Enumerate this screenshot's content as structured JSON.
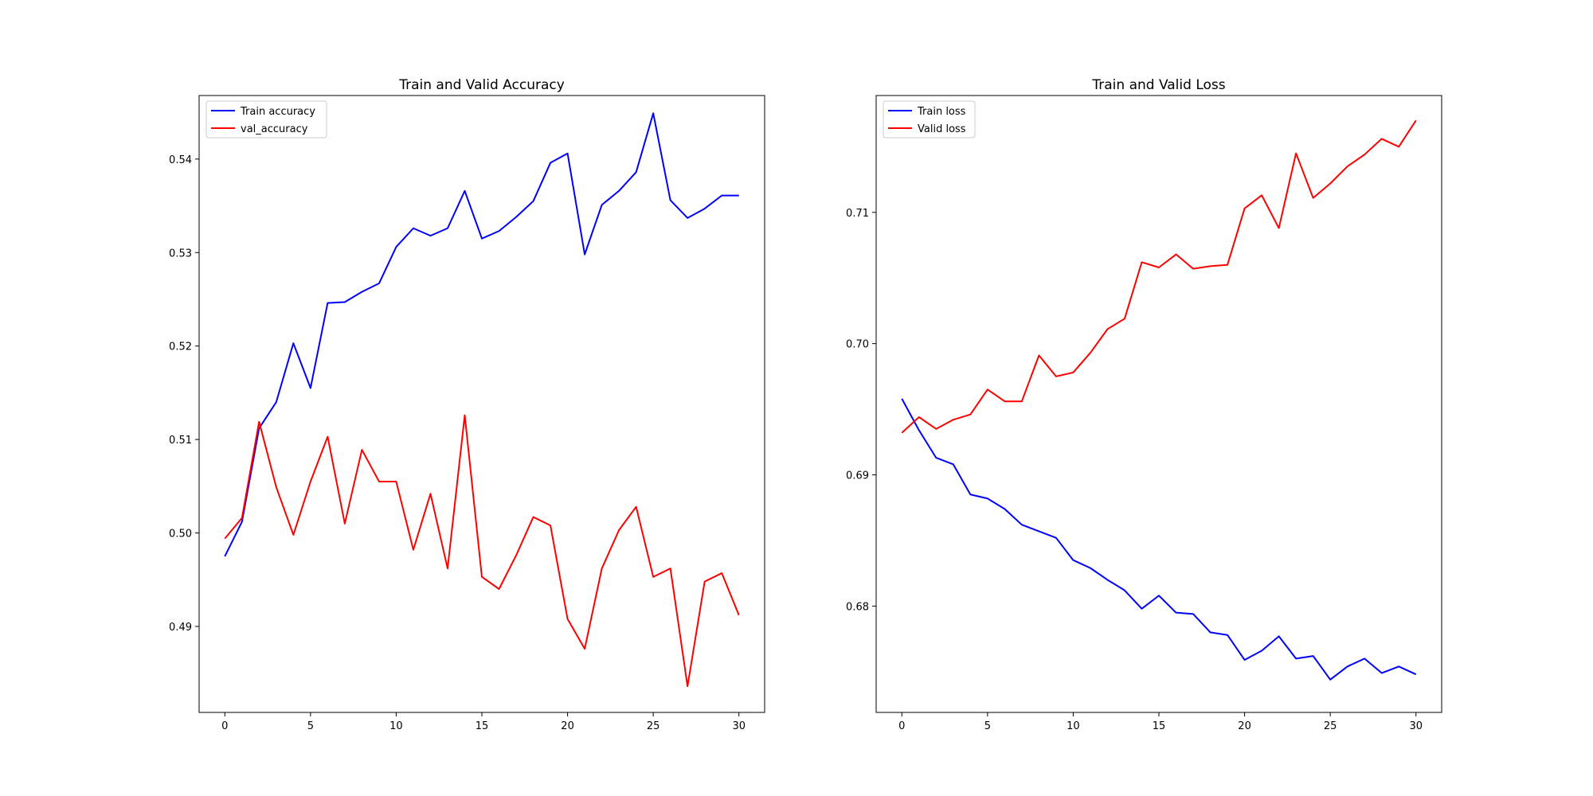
{
  "chart_data": [
    {
      "type": "line",
      "title": "Train and Valid Accuracy",
      "xlabel": "",
      "ylabel": "",
      "x": [
        0,
        1,
        2,
        3,
        4,
        5,
        6,
        7,
        8,
        9,
        10,
        11,
        12,
        13,
        14,
        15,
        16,
        17,
        18,
        19,
        20,
        21,
        22,
        23,
        24,
        25,
        26,
        27,
        28,
        29,
        30
      ],
      "xlim": [
        -1.5,
        31.5
      ],
      "ylim": [
        0.4808,
        0.5468
      ],
      "xticks": [
        0,
        5,
        10,
        15,
        20,
        25,
        30
      ],
      "yticks": [
        0.49,
        0.5,
        0.51,
        0.52,
        0.53,
        0.54
      ],
      "xtick_labels": [
        "0",
        "5",
        "10",
        "15",
        "20",
        "25",
        "30"
      ],
      "ytick_labels": [
        "0.49",
        "0.50",
        "0.51",
        "0.52",
        "0.53",
        "0.54"
      ],
      "grid": false,
      "legend_position": "upper left",
      "series": [
        {
          "name": "Train accuracy",
          "color": "#0000ff",
          "values": [
            0.4975,
            0.5012,
            0.5112,
            0.514,
            0.5203,
            0.5155,
            0.5246,
            0.5247,
            0.5258,
            0.5267,
            0.5306,
            0.5326,
            0.5318,
            0.5326,
            0.5366,
            0.5315,
            0.5323,
            0.5338,
            0.5355,
            0.5396,
            0.5406,
            0.5298,
            0.5351,
            0.5366,
            0.5386,
            0.5449,
            0.5356,
            0.5337,
            0.5347,
            0.5361,
            0.5361
          ]
        },
        {
          "name": "val_accuracy",
          "color": "#ff0000",
          "values": [
            0.4994,
            0.5016,
            0.5119,
            0.5049,
            0.4998,
            0.5055,
            0.5103,
            0.501,
            0.5089,
            0.5055,
            0.5055,
            0.4982,
            0.5042,
            0.4962,
            0.5126,
            0.4953,
            0.494,
            0.4976,
            0.5017,
            0.5008,
            0.4908,
            0.4876,
            0.4962,
            0.5003,
            0.5028,
            0.4953,
            0.4962,
            0.4836,
            0.4948,
            0.4957,
            0.4912
          ]
        }
      ]
    },
    {
      "type": "line",
      "title": "Train and Valid Loss",
      "xlabel": "",
      "ylabel": "",
      "x": [
        0,
        1,
        2,
        3,
        4,
        5,
        6,
        7,
        8,
        9,
        10,
        11,
        12,
        13,
        14,
        15,
        16,
        17,
        18,
        19,
        20,
        21,
        22,
        23,
        24,
        25,
        26,
        27,
        28,
        29,
        30
      ],
      "xlim": [
        -1.5,
        31.5
      ],
      "ylim": [
        0.6719,
        0.7189
      ],
      "xticks": [
        0,
        5,
        10,
        15,
        20,
        25,
        30
      ],
      "yticks": [
        0.68,
        0.69,
        0.7,
        0.71
      ],
      "xtick_labels": [
        "0",
        "5",
        "10",
        "15",
        "20",
        "25",
        "30"
      ],
      "ytick_labels": [
        "0.68",
        "0.69",
        "0.70",
        "0.71"
      ],
      "grid": false,
      "legend_position": "upper left",
      "series": [
        {
          "name": "Train loss",
          "color": "#0000ff",
          "values": [
            0.6958,
            0.6934,
            0.6913,
            0.6908,
            0.6885,
            0.6882,
            0.6874,
            0.6862,
            0.6857,
            0.6852,
            0.6835,
            0.6829,
            0.682,
            0.6812,
            0.6798,
            0.6808,
            0.6795,
            0.6794,
            0.678,
            0.6778,
            0.6759,
            0.6766,
            0.6777,
            0.676,
            0.6762,
            0.6744,
            0.6754,
            0.676,
            0.6749,
            0.6754,
            0.6748
          ]
        },
        {
          "name": "Valid loss",
          "color": "#ff0000",
          "values": [
            0.6932,
            0.6944,
            0.6935,
            0.6942,
            0.6946,
            0.6965,
            0.6956,
            0.6956,
            0.6991,
            0.6975,
            0.6978,
            0.6993,
            0.7011,
            0.7019,
            0.7062,
            0.7058,
            0.7068,
            0.7057,
            0.7059,
            0.706,
            0.7103,
            0.7113,
            0.7088,
            0.7145,
            0.7111,
            0.7122,
            0.7135,
            0.7144,
            0.7156,
            0.715,
            0.717
          ]
        }
      ]
    }
  ]
}
